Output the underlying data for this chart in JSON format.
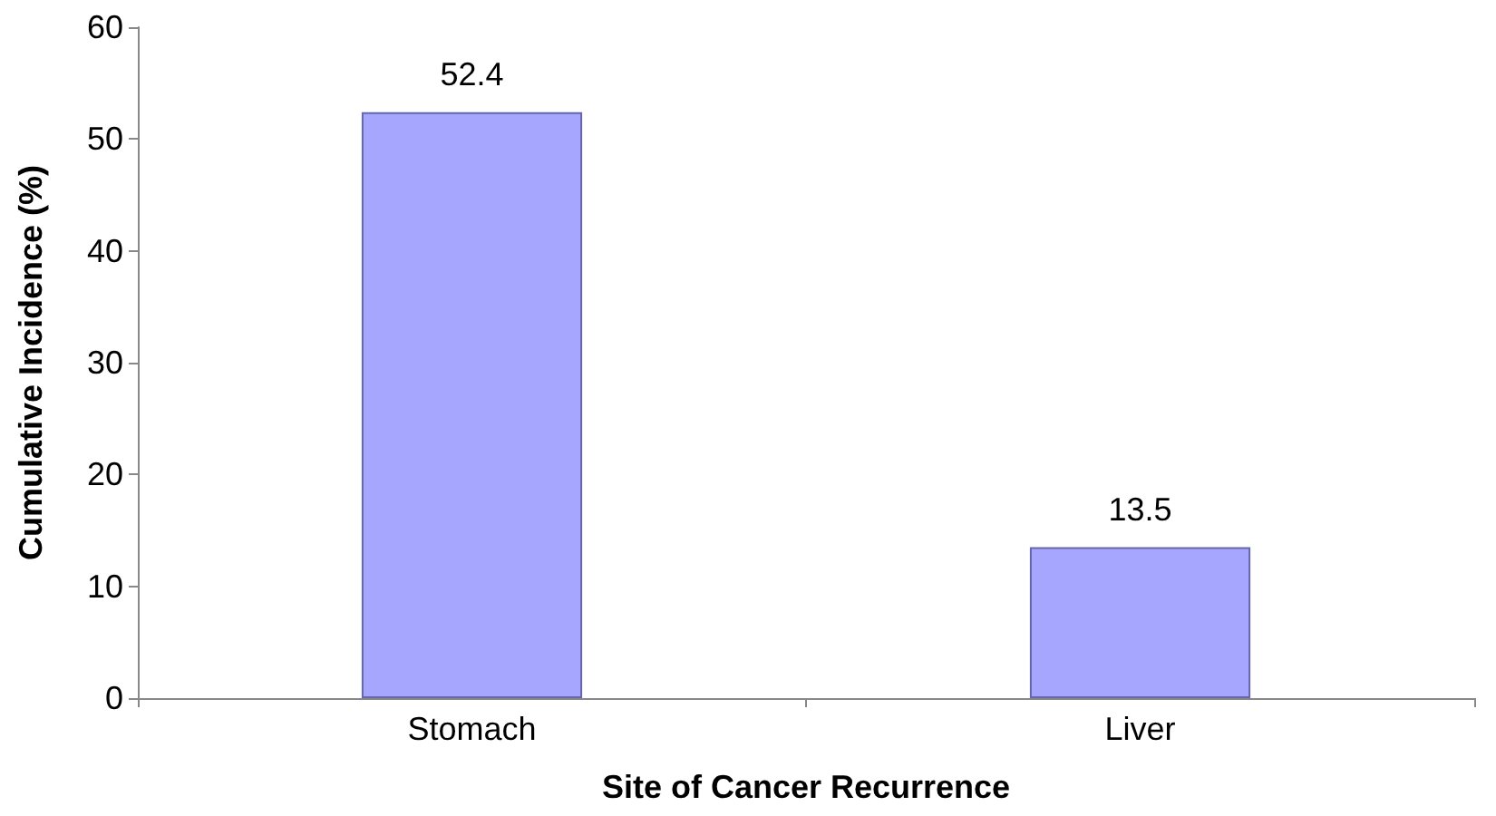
{
  "chart_data": {
    "type": "bar",
    "xlabel": "Site of Cancer Recurrence",
    "ylabel": "Cumulative Incidence (%)",
    "categories": [
      "Stomach",
      "Liver"
    ],
    "values": [
      52.4,
      13.5
    ],
    "color": "#a6a6ff",
    "ylim": [
      0,
      60
    ],
    "yticks": [
      0,
      10,
      20,
      30,
      40,
      50,
      60
    ],
    "grid": false,
    "data_labels": true
  }
}
